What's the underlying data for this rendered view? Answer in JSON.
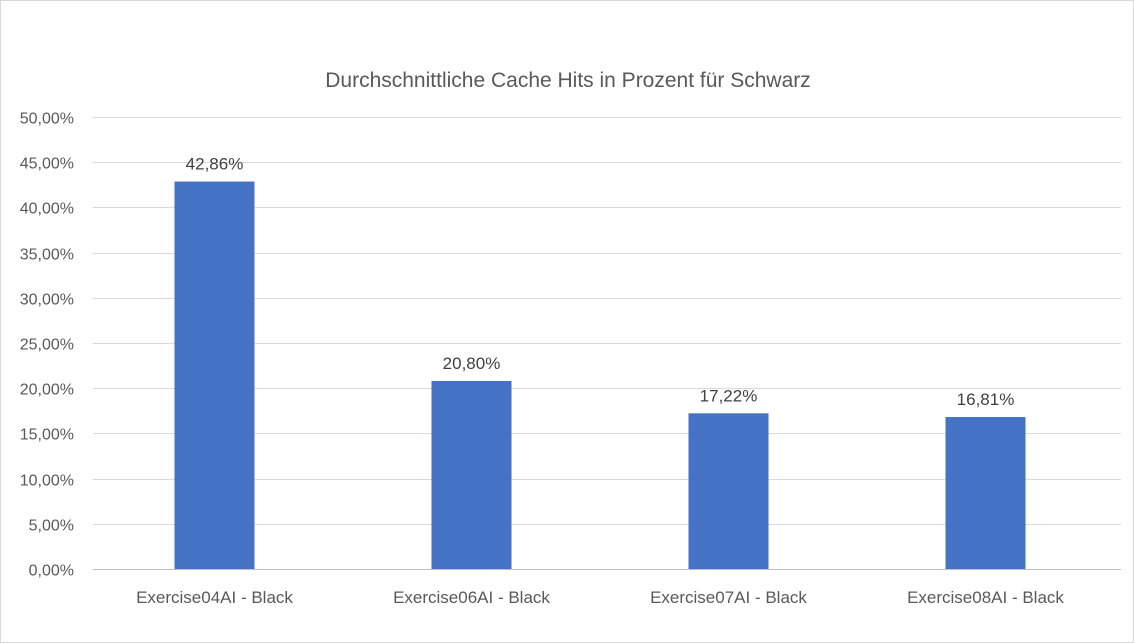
{
  "chart_data": {
    "type": "bar",
    "title": "Durchschnittliche Cache Hits in Prozent für Schwarz",
    "categories": [
      "Exercise04AI - Black",
      "Exercise06AI - Black",
      "Exercise07AI - Black",
      "Exercise08AI - Black"
    ],
    "values": [
      42.86,
      20.8,
      17.22,
      16.81
    ],
    "data_labels": [
      "42,86%",
      "20,80%",
      "17,22%",
      "16,81%"
    ],
    "ylim": [
      0,
      50
    ],
    "y_ticks": [
      0,
      5,
      10,
      15,
      20,
      25,
      30,
      35,
      40,
      45,
      50
    ],
    "y_tick_labels": [
      "0,00%",
      "5,00%",
      "10,00%",
      "15,00%",
      "20,00%",
      "25,00%",
      "30,00%",
      "35,00%",
      "40,00%",
      "45,00%",
      "50,00%"
    ],
    "xlabel": "",
    "ylabel": "",
    "grid": true,
    "legend": "none",
    "bar_color": "#4472c4"
  }
}
